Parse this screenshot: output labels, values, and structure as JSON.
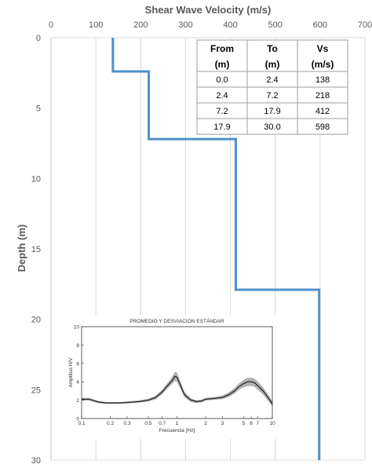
{
  "chart_data": {
    "type": "line",
    "title": "Shear Wave Velocity (m/s)",
    "ylabel": "Depth (m)",
    "xlim": [
      0,
      700
    ],
    "ylim": [
      0,
      30
    ],
    "y_inverted": true,
    "x_axis_position": "top",
    "x_ticks": [
      0,
      100,
      200,
      300,
      400,
      500,
      600,
      700
    ],
    "y_ticks": [
      0,
      5,
      10,
      15,
      20,
      25,
      30
    ],
    "grid": "vertical",
    "series_color": "#4f8fc9",
    "profile": [
      {
        "from": 0.0,
        "to": 2.4,
        "vs": 138
      },
      {
        "from": 2.4,
        "to": 7.2,
        "vs": 218
      },
      {
        "from": 7.2,
        "to": 17.9,
        "vs": 412
      },
      {
        "from": 17.9,
        "to": 30.0,
        "vs": 598
      }
    ],
    "table": {
      "header_1": [
        "From",
        "To",
        "Vs"
      ],
      "header_2": [
        "(m)",
        "(m)",
        "(m/s)"
      ],
      "rows": [
        [
          "0.0",
          "2.4",
          "138"
        ],
        [
          "2.4",
          "7.2",
          "218"
        ],
        [
          "7.2",
          "17.9",
          "412"
        ],
        [
          "17.9",
          "30.0",
          "598"
        ]
      ]
    },
    "inset": {
      "type": "line",
      "title": "PROMEDIO Y DESVIACIÓN ESTÁNDAR",
      "xlabel": "Frecuencia [Hz]",
      "ylabel": "Amplitud H/V",
      "xscale": "log",
      "xlim": [
        0.1,
        10
      ],
      "ylim": [
        0,
        10
      ],
      "x_ticks": [
        0.1,
        0.2,
        0.3,
        0.5,
        0.7,
        1,
        2,
        3,
        5,
        6,
        7,
        10
      ],
      "x_tick_labels": [
        "0.1",
        "0.2",
        "0.3",
        "0.5",
        "0.7",
        "1",
        "2",
        "3",
        "5",
        "6",
        "7",
        "10"
      ],
      "y_ticks": [
        0,
        2,
        4,
        6,
        8,
        10
      ],
      "band_color": "#b0b0b0",
      "mean_color": "#222222",
      "frequencies": [
        0.1,
        0.12,
        0.15,
        0.18,
        0.2,
        0.25,
        0.3,
        0.35,
        0.4,
        0.5,
        0.6,
        0.7,
        0.8,
        0.9,
        0.95,
        1.0,
        1.1,
        1.2,
        1.4,
        1.6,
        1.8,
        2.0,
        2.5,
        3.0,
        3.5,
        4.0,
        4.5,
        5.0,
        5.5,
        6.0,
        6.5,
        7.0,
        8.0,
        9.0,
        10.0
      ],
      "mean": [
        2.1,
        2.1,
        1.8,
        1.7,
        1.7,
        1.7,
        1.75,
        1.8,
        1.85,
        2.0,
        2.3,
        2.9,
        3.6,
        4.2,
        4.6,
        4.5,
        3.5,
        2.6,
        2.0,
        1.85,
        1.9,
        2.1,
        2.2,
        2.3,
        2.6,
        3.0,
        3.5,
        3.8,
        4.0,
        4.0,
        3.9,
        3.6,
        3.0,
        2.3,
        1.6
      ],
      "std": [
        0.15,
        0.15,
        0.12,
        0.1,
        0.1,
        0.1,
        0.1,
        0.12,
        0.12,
        0.15,
        0.2,
        0.25,
        0.3,
        0.4,
        0.5,
        0.5,
        0.4,
        0.3,
        0.2,
        0.15,
        0.15,
        0.15,
        0.15,
        0.2,
        0.25,
        0.3,
        0.35,
        0.4,
        0.45,
        0.45,
        0.45,
        0.45,
        0.4,
        0.35,
        0.3
      ]
    }
  }
}
